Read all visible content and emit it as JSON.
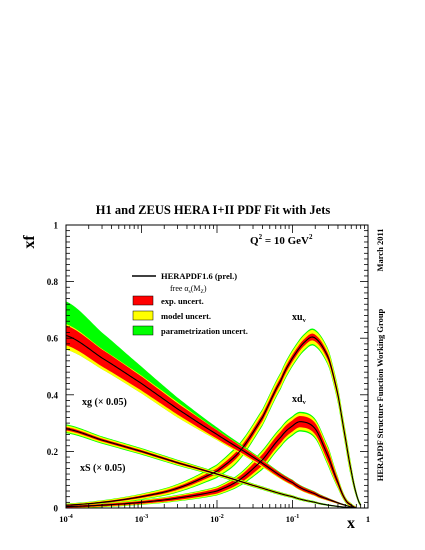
{
  "chart_data": {
    "type": "line",
    "title": "H1 and ZEUS HERA I+II PDF Fit with Jets",
    "xlabel": "x",
    "ylabel": "xf",
    "xscale": "log",
    "xlim": [
      0.0001,
      1
    ],
    "ylim": [
      0,
      1
    ],
    "x_ticks": [
      "10",
      "10",
      "10",
      "10",
      "1"
    ],
    "x_tick_exponents": [
      "-4",
      "-3",
      "-2",
      "-1",
      ""
    ],
    "y_ticks": [
      "0",
      "0.2",
      "0.4",
      "0.6",
      "0.8",
      "1"
    ],
    "q2_label": {
      "main": "Q",
      "sup": "2",
      "mid": " = 10 GeV",
      "sup2": "2"
    },
    "side_label_date": "March 2011",
    "side_label_group": "HERAPDF Structure Function Working Group",
    "legend_position": "upper-middle",
    "legend": {
      "line": "HERAPDF1.6 (prel.)",
      "line_sub_a": "free α",
      "line_sub_s": "s",
      "line_sub_paren_open": "(M",
      "line_sub_z": "Z",
      "line_sub_paren_close": ")",
      "exp": "exp. uncert.",
      "model": "model uncert.",
      "param": "parametrization uncert."
    },
    "colors": {
      "exp": "#ff0000",
      "model": "#ffff00",
      "param": "#00ff00",
      "central": "#000000"
    },
    "curve_labels": {
      "xuv": {
        "main": "xu",
        "sub": "v"
      },
      "xdv": {
        "main": "xd",
        "sub": "v"
      },
      "xg": "xg (× 0.05)",
      "xS": "xS (× 0.05)"
    },
    "series": [
      {
        "name": "xu_v",
        "x": [
          0.0001,
          0.0003,
          0.001,
          0.003,
          0.01,
          0.02,
          0.04,
          0.07,
          0.1,
          0.15,
          0.2,
          0.3,
          0.4,
          0.5,
          0.6,
          0.7,
          0.8
        ],
        "y": [
          0.01,
          0.02,
          0.04,
          0.07,
          0.13,
          0.2,
          0.32,
          0.45,
          0.53,
          0.59,
          0.6,
          0.53,
          0.4,
          0.25,
          0.13,
          0.05,
          0.01
        ],
        "unc_exp": 0.012,
        "unc_model": 0.025,
        "unc_param": 0.03
      },
      {
        "name": "xd_v",
        "x": [
          0.0001,
          0.0003,
          0.001,
          0.003,
          0.01,
          0.02,
          0.04,
          0.07,
          0.1,
          0.13,
          0.2,
          0.3,
          0.4,
          0.5,
          0.6,
          0.7
        ],
        "y": [
          0.005,
          0.01,
          0.02,
          0.035,
          0.06,
          0.1,
          0.17,
          0.25,
          0.29,
          0.305,
          0.28,
          0.18,
          0.09,
          0.03,
          0.01,
          0.0
        ],
        "unc_exp": 0.02,
        "unc_model": 0.03,
        "unc_param": 0.035
      },
      {
        "name": "xg (x 0.05)",
        "x": [
          0.0001,
          0.0003,
          0.001,
          0.003,
          0.01,
          0.03,
          0.1,
          0.2,
          0.3,
          0.5,
          0.7
        ],
        "y": [
          0.61,
          0.53,
          0.44,
          0.35,
          0.26,
          0.18,
          0.09,
          0.05,
          0.03,
          0.01,
          0.0
        ],
        "unc_exp_lo": [
          0.035,
          0.03,
          0.025,
          0.02,
          0.015,
          0.01,
          0.008,
          0.006,
          0.004,
          0.002,
          0.0
        ],
        "unc_model_lo": [
          0.05,
          0.04,
          0.035,
          0.03,
          0.02,
          0.015,
          0.01,
          0.008,
          0.005,
          0.002,
          0.0
        ],
        "unc_param_hi": [
          0.12,
          0.09,
          0.06,
          0.04,
          0.025,
          0.015,
          0.01,
          0.008,
          0.005,
          0.002,
          0.0
        ]
      },
      {
        "name": "xS (x 0.05)",
        "x": [
          0.0001,
          0.0003,
          0.001,
          0.003,
          0.01,
          0.03,
          0.1,
          0.2,
          0.3,
          0.5,
          0.7
        ],
        "y": [
          0.28,
          0.24,
          0.2,
          0.16,
          0.12,
          0.08,
          0.04,
          0.02,
          0.01,
          0.003,
          0.0
        ],
        "unc": [
          0.012,
          0.01,
          0.009,
          0.008,
          0.006,
          0.005,
          0.004,
          0.003,
          0.002,
          0.001,
          0.0
        ]
      }
    ]
  }
}
